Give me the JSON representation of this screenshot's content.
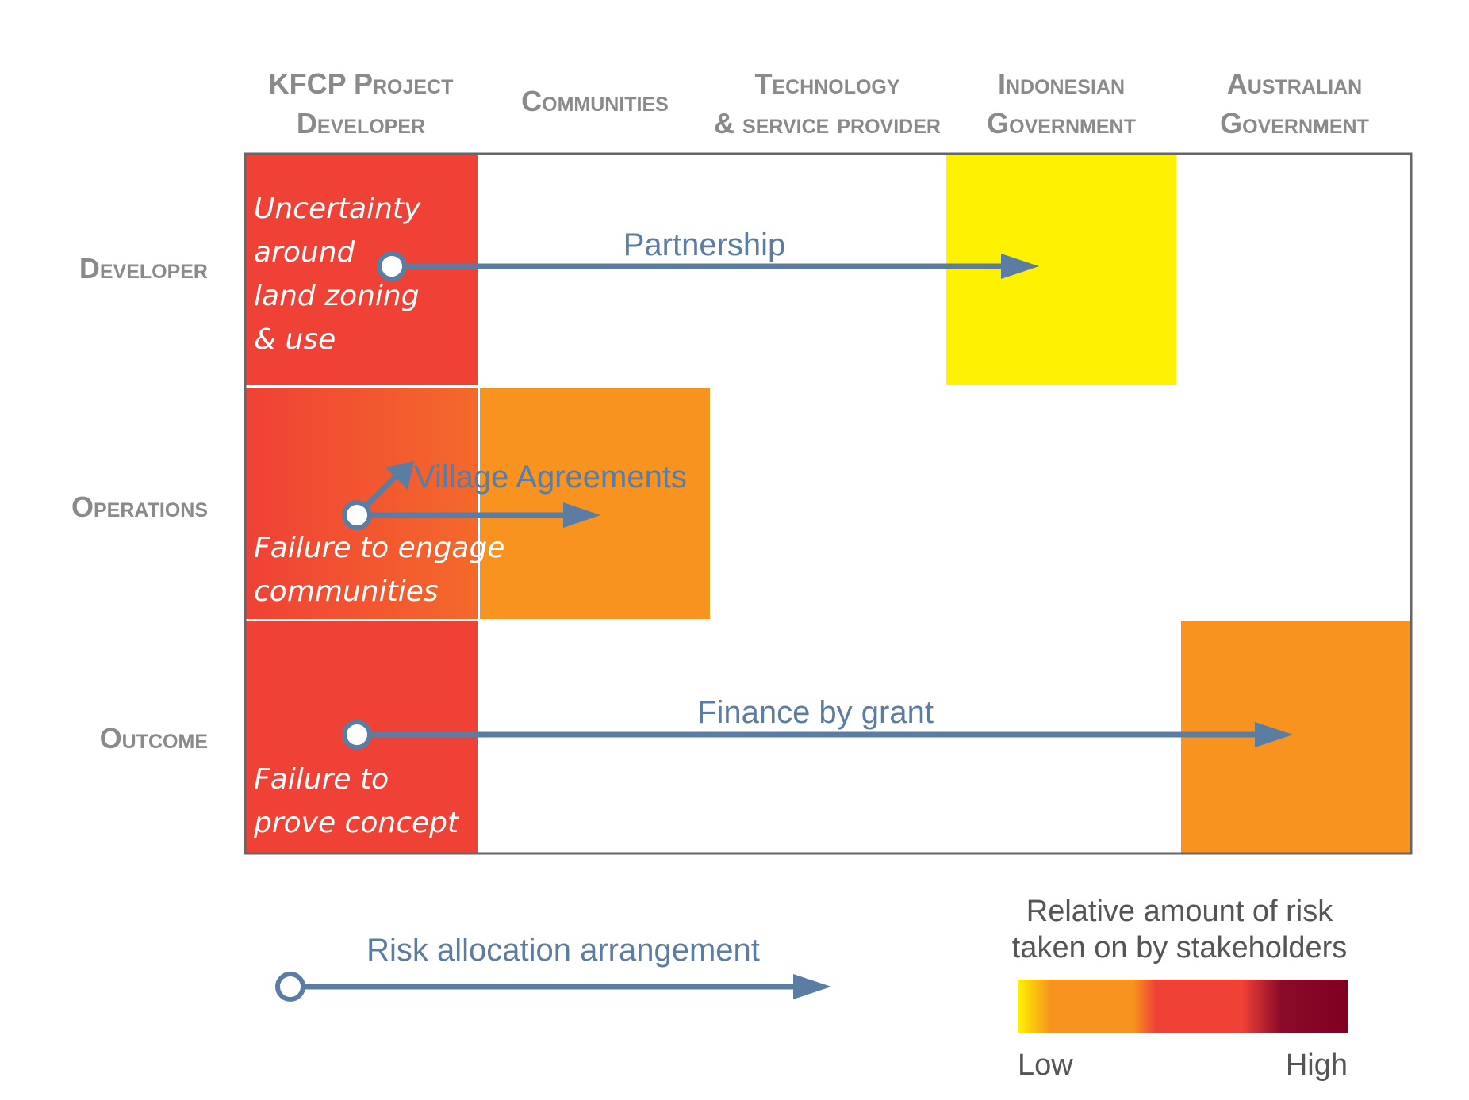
{
  "columns": [
    {
      "line1": "KFCP Project",
      "line2": "Developer"
    },
    {
      "line1": "",
      "line2": "Communities"
    },
    {
      "line1": "Technology",
      "line2": "& service provider"
    },
    {
      "line1": "Indonesian",
      "line2": "Government"
    },
    {
      "line1": "Australian",
      "line2": "Government"
    }
  ],
  "rows": [
    "Developer",
    "Operations",
    "Outcome"
  ],
  "risks": {
    "developer": [
      "Uncertainty",
      "around",
      "land zoning",
      "& use"
    ],
    "operations": [
      "Failure to engage",
      "communities"
    ],
    "outcome": [
      "Failure to",
      "prove concept"
    ]
  },
  "arrows": {
    "partnership": "Partnership",
    "village": "Village Agreements",
    "grant": "Finance by grant"
  },
  "legend": {
    "arrangement": "Risk allocation arrangement",
    "scale_title_1": "Relative amount of risk",
    "scale_title_2": "taken on by stakeholders",
    "low": "Low",
    "high": "High"
  },
  "colors": {
    "red": "#ef4136",
    "orange": "#f7931e",
    "yellow": "#fff200",
    "arrow": "#5b7ca3",
    "dark_red": "#7f0020"
  }
}
